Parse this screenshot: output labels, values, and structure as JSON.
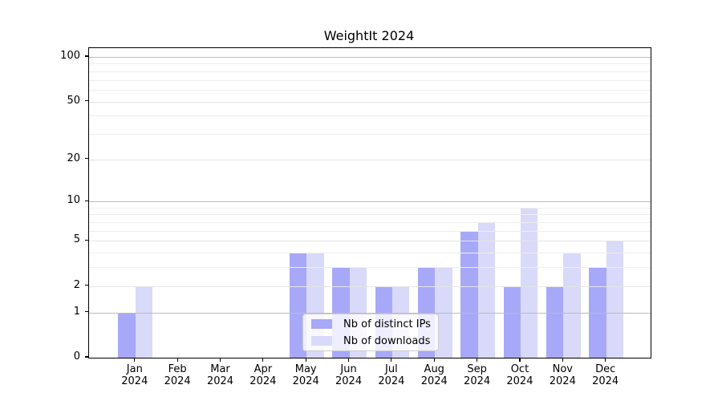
{
  "chart_data": {
    "type": "bar",
    "title": "WeightIt 2024",
    "months": [
      "Jan",
      "Feb",
      "Mar",
      "Apr",
      "May",
      "Jun",
      "Jul",
      "Aug",
      "Sep",
      "Oct",
      "Nov",
      "Dec"
    ],
    "year": "2024",
    "series": [
      {
        "name": "Nb of distinct IPs",
        "color": "#a8a8f8",
        "values": [
          1,
          0,
          0,
          0,
          4,
          3,
          2,
          3,
          6,
          2,
          2,
          3
        ]
      },
      {
        "name": "Nb of downloads",
        "color": "#d9d9f9",
        "values": [
          2,
          0,
          0,
          0,
          4,
          3,
          2,
          3,
          7,
          9,
          4,
          5
        ]
      }
    ],
    "yscale": "log1p",
    "ylim": [
      0,
      113
    ],
    "y_major_ticks": [
      0,
      1,
      2,
      5,
      10,
      20,
      50,
      100
    ],
    "y_decade_ticks": [
      1,
      10,
      100
    ],
    "y_minor_ticks": [
      3,
      4,
      6,
      7,
      8,
      9,
      30,
      40,
      60,
      70,
      80,
      90
    ],
    "grid": "on",
    "legend_position": "inside-bottom-center",
    "xlabel": "",
    "ylabel": "",
    "colors": {
      "axis": "#000000",
      "grid_decade": "#bcbcbc",
      "grid_major": "#e4e4e4",
      "grid_minor": "#eeeeee",
      "background": "#ffffff",
      "text": "#000000"
    }
  }
}
